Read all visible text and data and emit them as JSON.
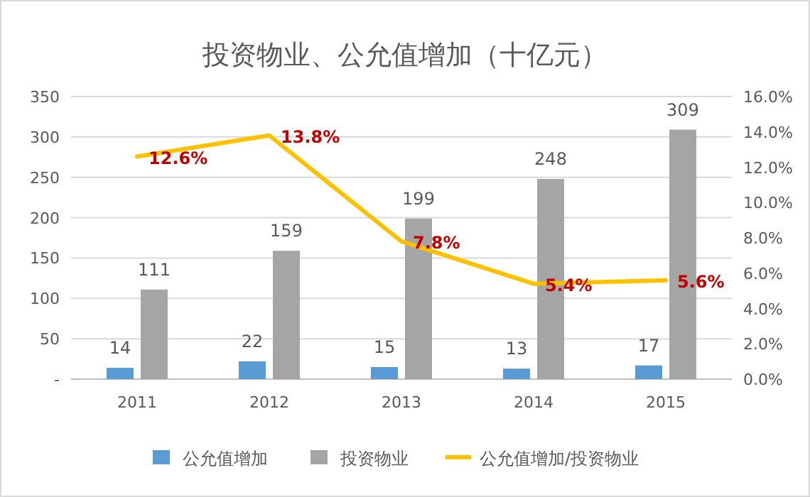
{
  "chart_data": {
    "type": "bar",
    "title": "投资物业、公允值增加（十亿元）",
    "categories": [
      "2011",
      "2012",
      "2013",
      "2014",
      "2015"
    ],
    "series": [
      {
        "name": "公允值增加",
        "color": "#5b9bd5",
        "values": [
          14,
          22,
          15,
          13,
          17
        ],
        "value_labels": [
          "14",
          "22",
          "15",
          "13",
          "17"
        ]
      },
      {
        "name": "投资物业",
        "color": "#a5a5a5",
        "values": [
          111,
          159,
          199,
          248,
          309
        ],
        "value_labels": [
          "111",
          "159",
          "199",
          "248",
          "309"
        ]
      },
      {
        "name": "公允值增加/投资物业",
        "type": "line",
        "axis": "y2",
        "color": "#ffc000",
        "marker": "none",
        "values": [
          12.6,
          13.8,
          7.8,
          5.4,
          5.6
        ],
        "value_labels": [
          "12.6%",
          "13.8%",
          "7.8%",
          "5.4%",
          "5.6%"
        ]
      }
    ],
    "ylim": [
      0,
      350
    ],
    "yticks": [
      {
        "value": 0,
        "label": "-"
      },
      50,
      100,
      150,
      200,
      250,
      300,
      350
    ],
    "y2lim": [
      0,
      16
    ],
    "y2ticks": [
      {
        "value": 0,
        "label": "0.0%"
      },
      {
        "value": 2,
        "label": "2.0%"
      },
      {
        "value": 4,
        "label": "4.0%"
      },
      {
        "value": 6,
        "label": "6.0%"
      },
      {
        "value": 8,
        "label": "8.0%"
      },
      {
        "value": 10,
        "label": "10.0%"
      },
      {
        "value": 12,
        "label": "12.0%"
      },
      {
        "value": 14,
        "label": "14.0%"
      },
      {
        "value": 16,
        "label": "16.0%"
      }
    ],
    "grid": "y",
    "legend": "bottom"
  }
}
